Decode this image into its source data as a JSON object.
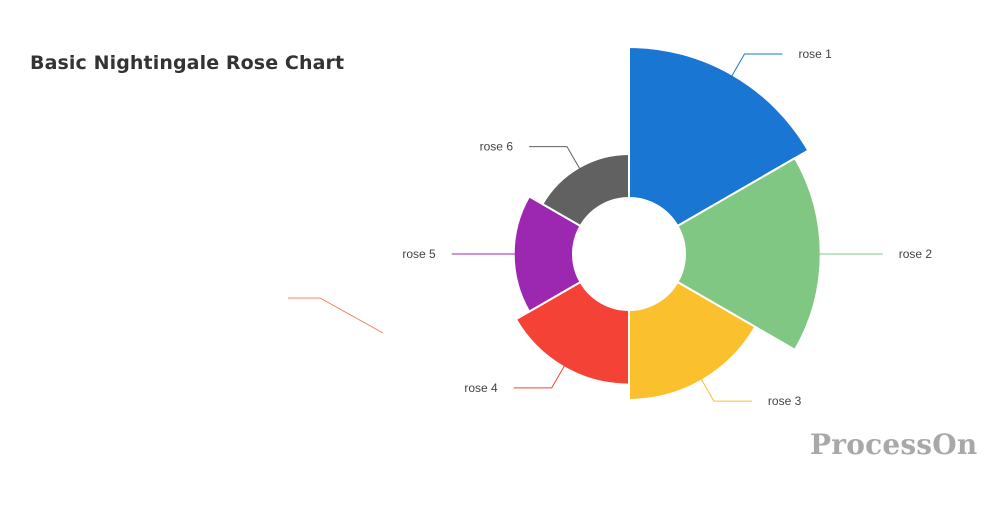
{
  "chart_data": {
    "type": "pie",
    "subtype": "nightingale-rose",
    "title": "Basic Nightingale Rose Chart",
    "series": [
      {
        "name": "",
        "data": [
          {
            "name": "rose 1",
            "value": 40,
            "color": "#1976D2"
          },
          {
            "name": "rose 2",
            "value": 38,
            "color": "#81C784"
          },
          {
            "name": "rose 3",
            "value": 32,
            "color": "#FBC02D"
          },
          {
            "name": "rose 4",
            "value": 30,
            "color": "#F44336"
          },
          {
            "name": "rose 5",
            "value": 28,
            "color": "#9C27B0"
          },
          {
            "name": "rose 6",
            "value": 26,
            "color": "#616161"
          }
        ]
      }
    ],
    "legend": "none"
  },
  "watermark": "ProcessOn"
}
